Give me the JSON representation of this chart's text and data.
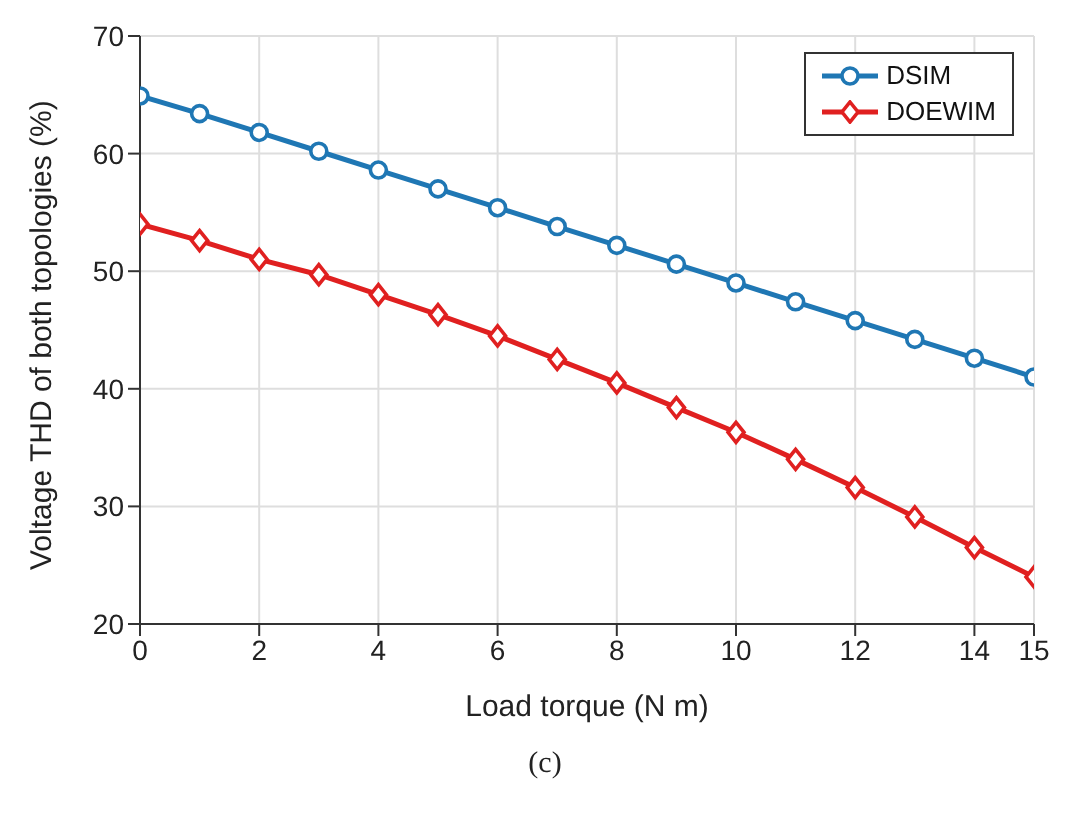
{
  "chart_data": {
    "type": "line",
    "xlabel": "Load torque (N m)",
    "ylabel": "Voltage THD of both topologies (%)",
    "x": [
      0,
      1,
      2,
      3,
      4,
      5,
      6,
      7,
      8,
      9,
      10,
      11,
      12,
      13,
      14,
      15
    ],
    "series": [
      {
        "name": "DSIM",
        "color": "#1f77b4",
        "marker": "circle",
        "values": [
          64.9,
          63.4,
          61.8,
          60.2,
          58.6,
          57.0,
          55.4,
          53.8,
          52.2,
          50.6,
          49.0,
          47.4,
          45.8,
          44.2,
          42.6,
          41.0
        ]
      },
      {
        "name": "DOEWIM",
        "color": "#e02020",
        "marker": "diamond",
        "values": [
          54.0,
          52.6,
          51.0,
          49.7,
          48.0,
          46.3,
          44.5,
          42.5,
          40.5,
          38.4,
          36.3,
          34.0,
          31.6,
          29.1,
          26.5,
          24.0
        ]
      }
    ],
    "xlim": [
      0,
      15
    ],
    "xticks": [
      0,
      2,
      4,
      6,
      8,
      10,
      12,
      14,
      15
    ],
    "ylim": [
      20,
      70
    ],
    "yticks": [
      20,
      30,
      40,
      50,
      60,
      70
    ],
    "grid": true,
    "legend": "top right",
    "line_style": "solid",
    "annotations": [
      "(c)"
    ]
  }
}
